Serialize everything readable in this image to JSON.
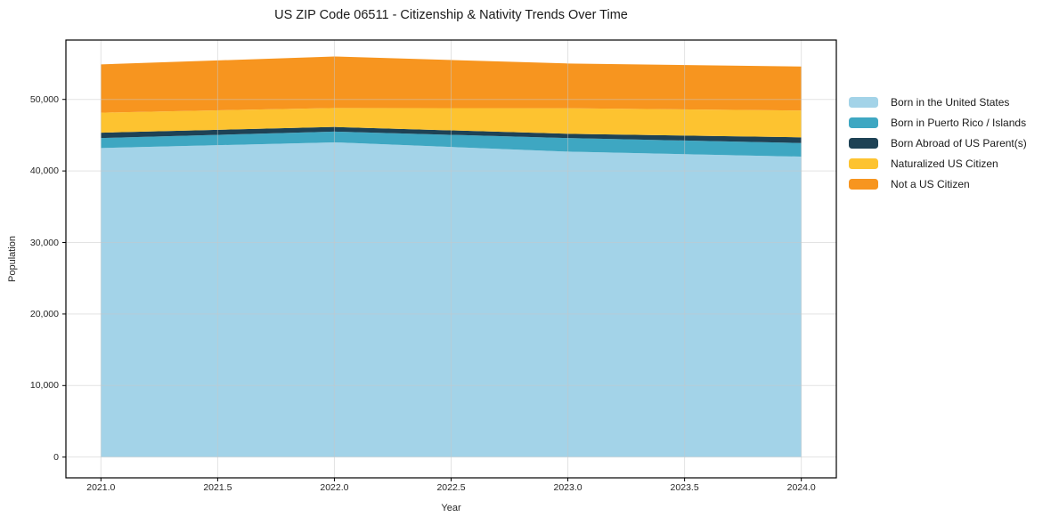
{
  "chart_data": {
    "type": "area",
    "stacked": true,
    "title": "US ZIP Code 06511 - Citizenship & Nativity Trends Over Time",
    "xlabel": "Year",
    "ylabel": "Population",
    "x": [
      2021,
      2022,
      2023,
      2024
    ],
    "series": [
      {
        "name": "Born in the United States",
        "color": "#a3d3e8",
        "values": [
          43200,
          44000,
          42700,
          42000
        ]
      },
      {
        "name": "Born in Puerto Rico / Islands",
        "color": "#3ea7c2",
        "values": [
          1400,
          1500,
          1900,
          1900
        ]
      },
      {
        "name": "Born Abroad of US Parent(s)",
        "color": "#1e4255",
        "values": [
          750,
          650,
          600,
          800
        ]
      },
      {
        "name": "Naturalized US Citizen",
        "color": "#fdc330",
        "values": [
          2800,
          2650,
          3575,
          3750
        ]
      },
      {
        "name": "Not a US Citizen",
        "color": "#f7951f",
        "values": [
          6750,
          7200,
          6250,
          6150
        ]
      }
    ],
    "stacked_totals": [
      54900,
      56000,
      55025,
      54600
    ],
    "x_ticks": [
      {
        "v": 2021,
        "label": "2021.0"
      },
      {
        "v": 2021.5,
        "label": "2021.5"
      },
      {
        "v": 2022,
        "label": "2022.0"
      },
      {
        "v": 2022.5,
        "label": "2022.5"
      },
      {
        "v": 2023,
        "label": "2023.0"
      },
      {
        "v": 2023.5,
        "label": "2023.5"
      },
      {
        "v": 2024,
        "label": "2024.0"
      }
    ],
    "y_ticks": [
      {
        "v": 0,
        "label": "0"
      },
      {
        "v": 10000,
        "label": "10,000"
      },
      {
        "v": 20000,
        "label": "20,000"
      },
      {
        "v": 30000,
        "label": "30,000"
      },
      {
        "v": 40000,
        "label": "40,000"
      },
      {
        "v": 50000,
        "label": "50,000"
      }
    ],
    "x_domain": [
      2020.85,
      2024.15
    ],
    "y_domain": [
      -2900,
      58300
    ],
    "grid": true,
    "grid_on_top": true,
    "legend_position": "right",
    "colors": {
      "background": "#ffffff",
      "spine": "#000000",
      "grid": "#c8c8c8",
      "title_text": "#1a1a1a",
      "tick_text": "#262626"
    }
  }
}
